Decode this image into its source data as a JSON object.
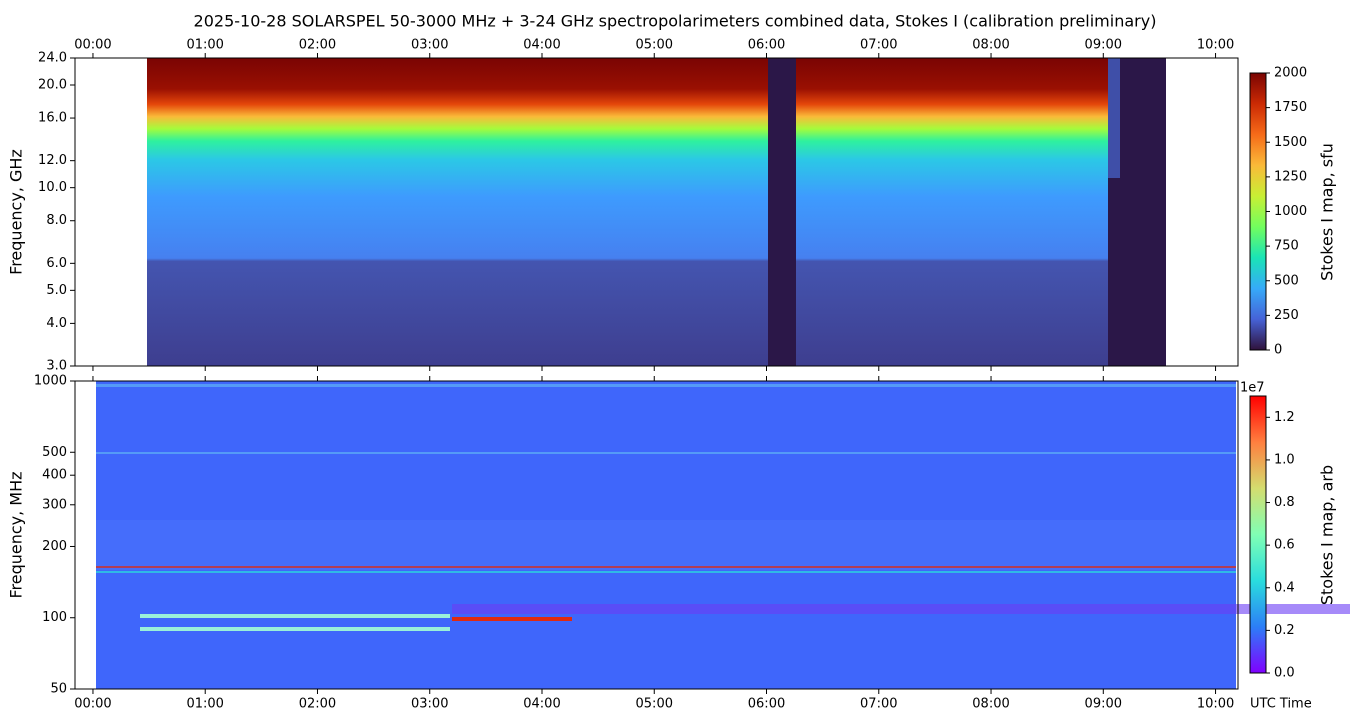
{
  "chart_data": [
    {
      "type": "heatmap",
      "title": "2025-10-28  SOLARSPEL  50-3000 MHz  +  3-24 GHz  spectropolarimeters combined data,  Stokes I  (calibration preliminary)",
      "y_label": "Frequency, GHz",
      "log_scale": true,
      "ylim": [
        3,
        24
      ],
      "yticks": [
        {
          "value": 3,
          "label": "3.0"
        },
        {
          "value": 4,
          "label": "4.0"
        },
        {
          "value": 5,
          "label": "5.0"
        },
        {
          "value": 6,
          "label": "6.0"
        },
        {
          "value": 8,
          "label": "8.0"
        },
        {
          "value": 10,
          "label": "10.0"
        },
        {
          "value": 12,
          "label": "12.0"
        },
        {
          "value": 16,
          "label": "16.0"
        },
        {
          "value": 20,
          "label": "20.0"
        },
        {
          "value": 24,
          "label": "24.0"
        }
      ],
      "xlim": [
        -0.16,
        10.2
      ],
      "x_axis_position": "top",
      "xticks": [
        {
          "value": 0,
          "label": "00:00"
        },
        {
          "value": 1,
          "label": "01:00"
        },
        {
          "value": 2,
          "label": "02:00"
        },
        {
          "value": 3,
          "label": "03:00"
        },
        {
          "value": 4,
          "label": "04:00"
        },
        {
          "value": 5,
          "label": "05:00"
        },
        {
          "value": 6,
          "label": "06:00"
        },
        {
          "value": 7,
          "label": "07:00"
        },
        {
          "value": 8,
          "label": "08:00"
        },
        {
          "value": 9,
          "label": "09:00"
        },
        {
          "value": 10,
          "label": "10:00"
        }
      ],
      "colorbar": {
        "label": "Stokes I map, sfu",
        "lim": [
          0,
          2000
        ],
        "ticks": [
          0,
          250,
          500,
          750,
          1000,
          1250,
          1500,
          1750,
          2000
        ],
        "colormap": [
          "#30123b",
          "#4662d7",
          "#36aaf9",
          "#1ae4b6",
          "#72fe5e",
          "#c8ef34",
          "#faba39",
          "#f66b19",
          "#cb2a04",
          "#7a0403"
        ]
      }
    },
    {
      "type": "heatmap",
      "x_label": "UTC Time",
      "y_label": "Frequency, MHz",
      "log_scale": true,
      "ylim": [
        50,
        1000
      ],
      "yticks": [
        50,
        100,
        200,
        300,
        400,
        500,
        1000
      ],
      "xlim": [
        -0.16,
        10.2
      ],
      "x_axis_position": "bottom",
      "xticks": [
        {
          "value": 0,
          "label": "00:00"
        },
        {
          "value": 1,
          "label": "01:00"
        },
        {
          "value": 2,
          "label": "02:00"
        },
        {
          "value": 3,
          "label": "03:00"
        },
        {
          "value": 4,
          "label": "04:00"
        },
        {
          "value": 5,
          "label": "05:00"
        },
        {
          "value": 6,
          "label": "06:00"
        },
        {
          "value": 7,
          "label": "07:00"
        },
        {
          "value": 8,
          "label": "08:00"
        },
        {
          "value": 9,
          "label": "09:00"
        },
        {
          "value": 10,
          "label": "10:00"
        }
      ],
      "colorbar": {
        "label": "Stokes I map, arb",
        "offset_label": "1e7",
        "lim": [
          0,
          13000000
        ],
        "ticks": [
          {
            "value": 0,
            "label": "0.0"
          },
          {
            "value": 2000000,
            "label": "0.2"
          },
          {
            "value": 4000000,
            "label": "0.4"
          },
          {
            "value": 6000000,
            "label": "0.6"
          },
          {
            "value": 8000000,
            "label": "0.8"
          },
          {
            "value": 10000000,
            "label": "1.0"
          },
          {
            "value": 12000000,
            "label": "1.2"
          }
        ],
        "colormap": [
          "#8000ff",
          "#2c7ef7",
          "#2adddd",
          "#80ffb4",
          "#d4dd6f",
          "#ff7f3f",
          "#ff0000"
        ]
      }
    }
  ]
}
